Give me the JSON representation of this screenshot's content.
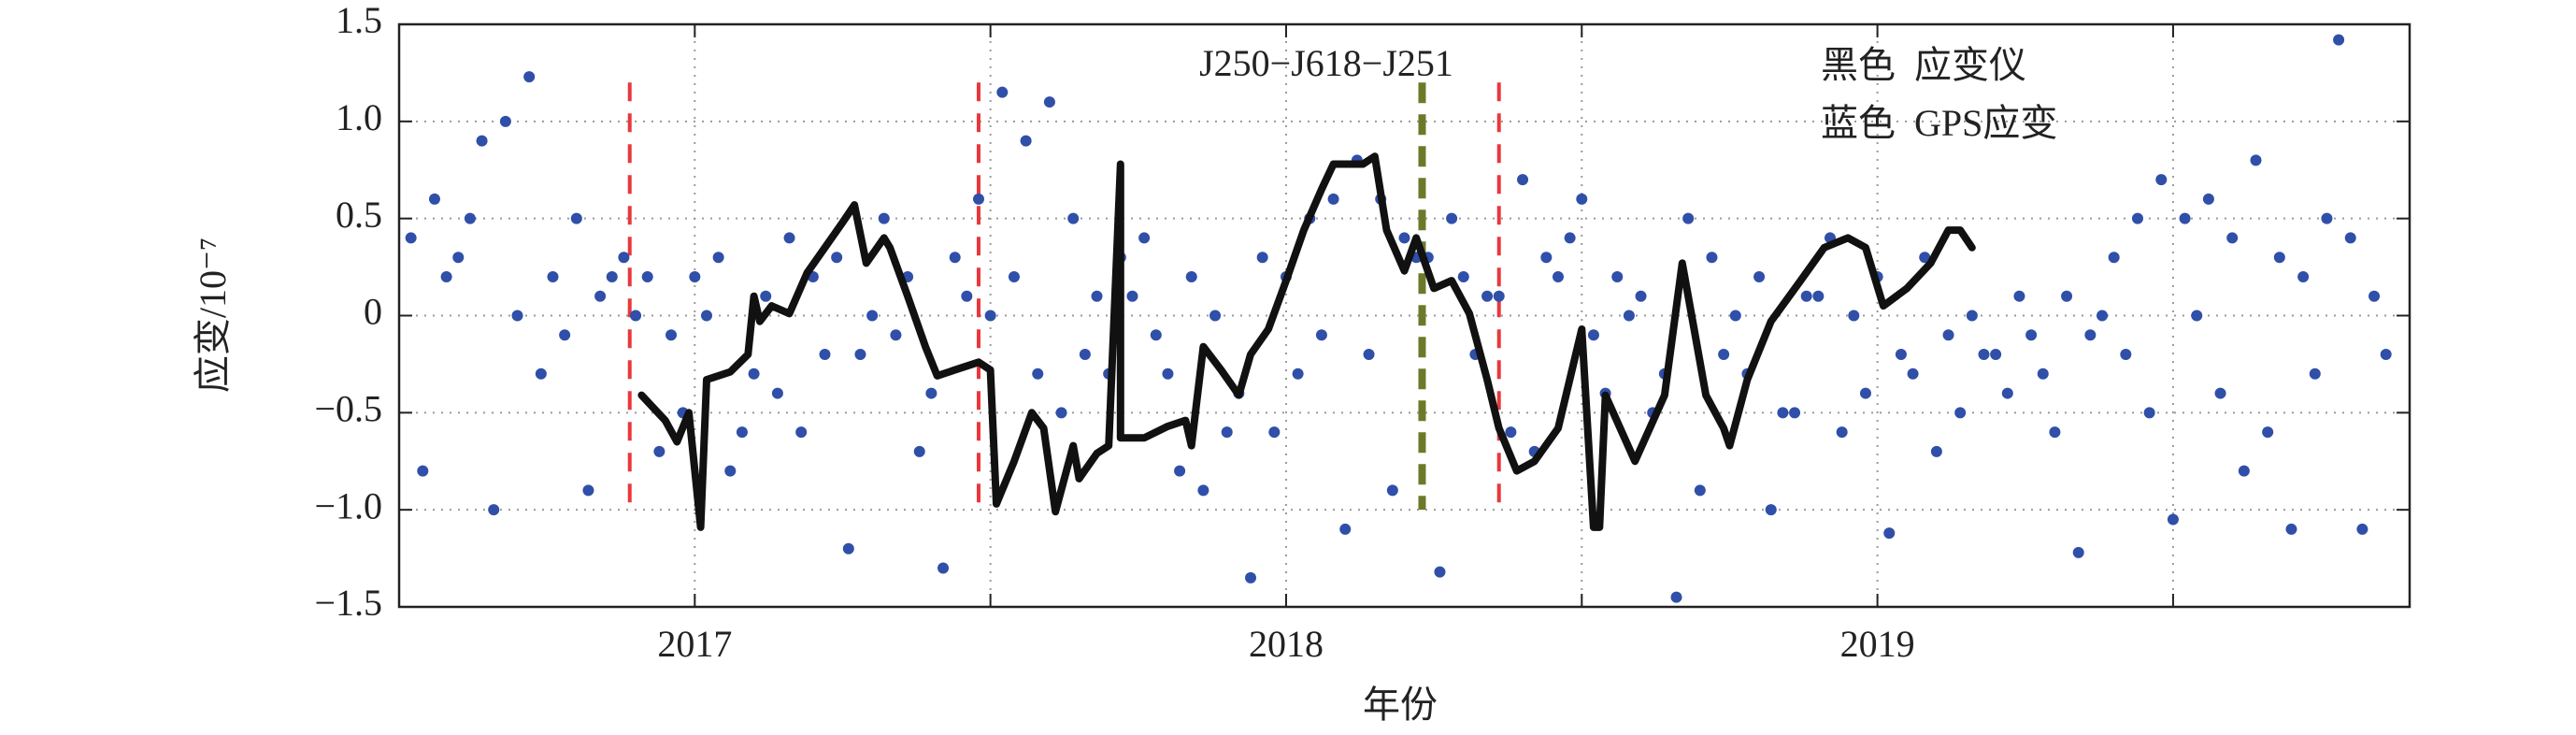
{
  "chart_data": {
    "type": "scatter-line",
    "xlabel": "年份",
    "ylabel": "应变/10⁻⁷",
    "annotation": "J250−J618−J251",
    "xlim": [
      2016.5,
      2019.9
    ],
    "xticks": [
      2017,
      2018,
      2019
    ],
    "xminor_ticks": [
      2017.5,
      2018.5,
      2019.5
    ],
    "ylim": [
      -1.5,
      1.5
    ],
    "yticks": [
      {
        "value": -1.5,
        "label": "−1.5"
      },
      {
        "value": -1.0,
        "label": "−1.0"
      },
      {
        "value": -0.5,
        "label": "−0.5"
      },
      0,
      {
        "value": 0.5,
        "label": "0.5"
      },
      {
        "value": 1.0,
        "label": "1.0"
      },
      {
        "value": 1.5,
        "label": "1.5"
      }
    ],
    "grid": true,
    "legend": "upper right",
    "events": [
      {
        "x": 2016.89,
        "color": "#e8383d"
      },
      {
        "x": 2017.48,
        "color": "#e8383d"
      },
      {
        "x": 2018.23,
        "color": "#6b7a2a"
      },
      {
        "x": 2018.36,
        "color": "#e8383d"
      }
    ],
    "event_ylim": [
      -1.0,
      1.2
    ],
    "series": [
      {
        "name": "黑色  应变仪",
        "kind": "line",
        "color": "#111111",
        "x": [
          2016.91,
          2016.95,
          2016.97,
          2016.99,
          2017.01,
          2017.02,
          2017.06,
          2017.09,
          2017.1,
          2017.11,
          2017.13,
          2017.16,
          2017.19,
          2017.22,
          2017.25,
          2017.27,
          2017.29,
          2017.32,
          2017.33,
          2017.36,
          2017.39,
          2017.41,
          2017.44,
          2017.48,
          2017.5,
          2017.51,
          2017.54,
          2017.57,
          2017.59,
          2017.61,
          2017.64,
          2017.65,
          2017.68,
          2017.7,
          2017.72,
          2017.72,
          2017.76,
          2017.8,
          2017.83,
          2017.84,
          2017.86,
          2017.89,
          2017.92,
          2017.94,
          2017.97,
          2018.0,
          2018.03,
          2018.06,
          2018.08,
          2018.13,
          2018.15,
          2018.17,
          2018.2,
          2018.22,
          2018.25,
          2018.28,
          2018.31,
          2018.34,
          2018.36,
          2018.39,
          2018.42,
          2018.46,
          2018.5,
          2018.52,
          2018.53,
          2018.54,
          2018.59,
          2018.64,
          2018.67,
          2018.69,
          2018.71,
          2018.74,
          2018.75,
          2018.78,
          2018.82,
          2018.87,
          2018.91,
          2018.95,
          2018.98,
          2019.01,
          2019.05,
          2019.09,
          2019.12,
          2019.14,
          2019.16
        ],
        "values": [
          -0.41,
          -0.54,
          -0.65,
          -0.5,
          -1.09,
          -0.33,
          -0.29,
          -0.2,
          0.1,
          -0.03,
          0.05,
          0.01,
          0.22,
          0.35,
          0.48,
          0.57,
          0.27,
          0.4,
          0.35,
          0.1,
          -0.16,
          -0.31,
          -0.28,
          -0.24,
          -0.28,
          -0.97,
          -0.75,
          -0.5,
          -0.58,
          -1.01,
          -0.67,
          -0.84,
          -0.71,
          -0.67,
          0.78,
          -0.63,
          -0.63,
          -0.57,
          -0.54,
          -0.67,
          -0.16,
          -0.28,
          -0.41,
          -0.2,
          -0.07,
          0.18,
          0.44,
          0.65,
          0.78,
          0.78,
          0.82,
          0.44,
          0.23,
          0.4,
          0.14,
          0.18,
          0.01,
          -0.33,
          -0.58,
          -0.8,
          -0.75,
          -0.58,
          -0.07,
          -1.09,
          -1.09,
          -0.41,
          -0.75,
          -0.41,
          0.27,
          -0.07,
          -0.41,
          -0.58,
          -0.67,
          -0.33,
          -0.03,
          0.18,
          0.35,
          0.4,
          0.35,
          0.05,
          0.14,
          0.27,
          0.44,
          0.44,
          0.35
        ]
      },
      {
        "name": "蓝色  GPS应变",
        "kind": "scatter",
        "color": "#2f4fa8",
        "x": [
          2016.52,
          2016.56,
          2016.6,
          2016.64,
          2016.68,
          2016.72,
          2016.76,
          2016.8,
          2016.84,
          2016.88,
          2016.92,
          2016.96,
          2017.0,
          2017.04,
          2017.08,
          2017.12,
          2017.16,
          2017.2,
          2017.24,
          2017.28,
          2017.32,
          2017.36,
          2017.4,
          2017.44,
          2017.48,
          2017.52,
          2017.56,
          2017.6,
          2017.64,
          2017.68,
          2017.72,
          2017.76,
          2017.8,
          2017.84,
          2017.88,
          2017.92,
          2017.96,
          2018.0,
          2018.04,
          2018.08,
          2018.12,
          2018.16,
          2018.2,
          2018.24,
          2018.28,
          2018.32,
          2018.36,
          2018.4,
          2018.44,
          2018.48,
          2018.52,
          2018.56,
          2018.6,
          2018.64,
          2018.68,
          2018.72,
          2018.76,
          2018.8,
          2018.84,
          2018.88,
          2018.92,
          2018.96,
          2019.0,
          2019.04,
          2019.08,
          2019.12,
          2019.16,
          2019.2,
          2019.24,
          2019.28,
          2019.32,
          2019.36,
          2019.4,
          2019.44,
          2019.48,
          2019.52,
          2019.56,
          2019.6,
          2019.64,
          2019.68,
          2019.72,
          2019.76,
          2019.8,
          2019.84,
          2016.54,
          2016.58,
          2016.62,
          2016.66,
          2016.7,
          2016.74,
          2016.78,
          2016.82,
          2016.86,
          2016.9,
          2016.94,
          2016.98,
          2017.02,
          2017.06,
          2017.1,
          2017.14,
          2017.18,
          2017.22,
          2017.26,
          2017.3,
          2017.34,
          2017.38,
          2017.42,
          2017.46,
          2017.5,
          2017.54,
          2017.58,
          2017.62,
          2017.66,
          2017.7,
          2017.74,
          2017.78,
          2017.82,
          2017.86,
          2017.9,
          2017.94,
          2017.98,
          2018.02,
          2018.06,
          2018.1,
          2018.14,
          2018.18,
          2018.22,
          2018.26,
          2018.3,
          2018.34,
          2018.38,
          2018.42,
          2018.46,
          2018.5,
          2018.54,
          2018.58,
          2018.62,
          2018.66,
          2018.7,
          2018.74,
          2018.78,
          2018.82,
          2018.86,
          2018.9,
          2018.94,
          2018.98,
          2019.02,
          2019.06,
          2019.1,
          2019.14,
          2019.18,
          2019.22,
          2019.26,
          2019.3,
          2019.34,
          2019.38,
          2019.42,
          2019.46,
          2019.5,
          2019.54,
          2019.58,
          2019.62,
          2019.66,
          2019.7,
          2019.74,
          2019.78,
          2019.82,
          2019.86
        ],
        "values": [
          0.4,
          0.6,
          0.3,
          0.9,
          1.0,
          1.23,
          0.2,
          0.5,
          0.1,
          0.3,
          0.2,
          -0.1,
          0.2,
          0.3,
          -0.6,
          0.1,
          0.4,
          0.2,
          0.3,
          -0.2,
          0.5,
          0.2,
          -0.4,
          0.3,
          0.6,
          1.15,
          0.9,
          1.1,
          0.5,
          0.1,
          0.3,
          0.4,
          -0.3,
          0.2,
          0.0,
          -0.4,
          0.3,
          0.2,
          0.5,
          0.6,
          0.8,
          0.6,
          0.4,
          0.3,
          0.5,
          -0.2,
          0.1,
          0.7,
          0.3,
          0.4,
          -0.1,
          0.2,
          0.1,
          -0.3,
          0.5,
          0.3,
          0.0,
          0.2,
          -0.5,
          0.1,
          0.4,
          0.0,
          0.2,
          -0.2,
          0.3,
          -0.1,
          0.0,
          -0.2,
          0.1,
          -0.3,
          0.1,
          -0.1,
          0.3,
          0.5,
          0.7,
          0.5,
          0.6,
          0.4,
          0.8,
          0.3,
          0.2,
          0.5,
          0.4,
          0.1,
          -0.8,
          0.2,
          0.5,
          -1.0,
          0.0,
          -0.3,
          -0.1,
          -0.9,
          0.2,
          0.0,
          -0.7,
          -0.5,
          0.0,
          -0.8,
          -0.3,
          -0.4,
          -0.6,
          -0.2,
          -1.2,
          0.0,
          -0.1,
          -0.7,
          -1.3,
          0.1,
          0.0,
          0.2,
          -0.3,
          -0.5,
          -0.2,
          -0.3,
          0.1,
          -0.1,
          -0.8,
          -0.9,
          -0.6,
          -1.35,
          -0.6,
          -0.3,
          -0.1,
          -1.1,
          -0.2,
          -0.9,
          0.3,
          -1.32,
          0.2,
          0.1,
          -0.6,
          -0.7,
          0.2,
          0.6,
          -0.4,
          0.0,
          -0.5,
          -1.45,
          -0.9,
          -0.2,
          -0.3,
          -1.0,
          -0.5,
          0.1,
          -0.6,
          -0.4,
          -1.12,
          -0.3,
          -0.7,
          -0.5,
          -0.2,
          -0.4,
          -0.1,
          -0.6,
          -1.22,
          0.0,
          -0.2,
          -0.5,
          -1.05,
          0.0,
          -0.4,
          -0.8,
          -0.6,
          -1.1,
          -0.3,
          1.42,
          -1.1,
          -0.2
        ]
      }
    ]
  }
}
